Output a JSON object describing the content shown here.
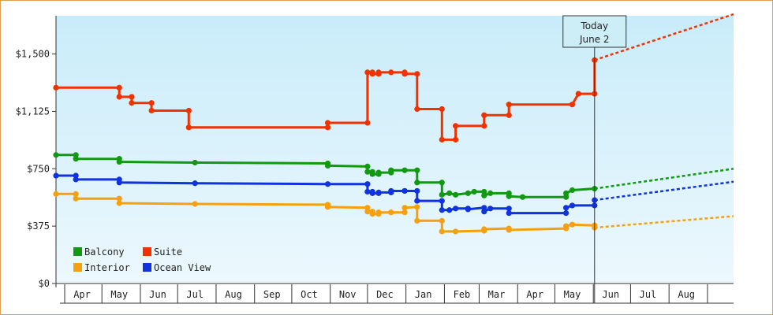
{
  "chart_data": {
    "type": "line",
    "title": "",
    "xlabel": "",
    "ylabel": "",
    "ylim": [
      0,
      1750
    ],
    "y_ticks": [
      {
        "value": 0,
        "label": "$0"
      },
      {
        "value": 375,
        "label": "$375"
      },
      {
        "value": 750,
        "label": "$750"
      },
      {
        "value": 1125,
        "label": "$1,125"
      },
      {
        "value": 1500,
        "label": "$1,500"
      }
    ],
    "x_range": [
      "2024-03-25",
      "2025-09-22"
    ],
    "month_labels": [
      {
        "label": "Apr",
        "date": "2024-04-15"
      },
      {
        "label": "May",
        "date": "2024-05-15"
      },
      {
        "label": "Jun",
        "date": "2024-06-15"
      },
      {
        "label": "Jul",
        "date": "2024-07-15"
      },
      {
        "label": "Aug",
        "date": "2024-08-15"
      },
      {
        "label": "Sep",
        "date": "2024-09-15"
      },
      {
        "label": "Oct",
        "date": "2024-10-15"
      },
      {
        "label": "Nov",
        "date": "2024-11-15"
      },
      {
        "label": "Dec",
        "date": "2024-12-15"
      },
      {
        "label": "Jan",
        "date": "2025-01-15"
      },
      {
        "label": "Feb",
        "date": "2025-02-15"
      },
      {
        "label": "Mar",
        "date": "2025-03-15"
      },
      {
        "label": "Apr",
        "date": "2025-04-15"
      },
      {
        "label": "May",
        "date": "2025-05-15"
      },
      {
        "label": "Jun",
        "date": "2025-06-15"
      },
      {
        "label": "Jul",
        "date": "2025-07-15"
      },
      {
        "label": "Aug",
        "date": "2025-08-15"
      }
    ],
    "today": {
      "date": "2025-06-02",
      "line1": "Today",
      "line2": "June 2"
    },
    "grid": false,
    "legend_position": "bottom-left",
    "series": [
      {
        "name": "Balcony",
        "color": "#119911",
        "points": [
          [
            "2024-03-25",
            840
          ],
          [
            "2024-04-10",
            840
          ],
          [
            "2024-04-10",
            815
          ],
          [
            "2024-05-15",
            815
          ],
          [
            "2024-05-15",
            795
          ],
          [
            "2024-07-15",
            790
          ],
          [
            "2024-10-30",
            785
          ],
          [
            "2024-10-30",
            770
          ],
          [
            "2024-12-01",
            765
          ],
          [
            "2024-12-01",
            730
          ],
          [
            "2024-12-05",
            730
          ],
          [
            "2024-12-05",
            715
          ],
          [
            "2024-12-10",
            715
          ],
          [
            "2024-12-10",
            725
          ],
          [
            "2024-12-20",
            725
          ],
          [
            "2024-12-20",
            740
          ],
          [
            "2024-12-31",
            740
          ],
          [
            "2025-01-10",
            740
          ],
          [
            "2025-01-10",
            660
          ],
          [
            "2025-01-30",
            660
          ],
          [
            "2025-01-30",
            580
          ],
          [
            "2025-02-05",
            590
          ],
          [
            "2025-02-10",
            580
          ],
          [
            "2025-02-20",
            590
          ],
          [
            "2025-02-25",
            600
          ],
          [
            "2025-03-05",
            600
          ],
          [
            "2025-03-05",
            575
          ],
          [
            "2025-03-10",
            590
          ],
          [
            "2025-03-25",
            590
          ],
          [
            "2025-03-25",
            570
          ],
          [
            "2025-04-05",
            565
          ],
          [
            "2025-05-10",
            565
          ],
          [
            "2025-05-10",
            590
          ],
          [
            "2025-05-15",
            610
          ],
          [
            "2025-06-02",
            620
          ]
        ],
        "projection": [
          [
            "2025-06-02",
            620
          ],
          [
            "2025-09-22",
            750
          ]
        ]
      },
      {
        "name": "Suite",
        "color": "#ee3300",
        "points": [
          [
            "2024-03-25",
            1280
          ],
          [
            "2024-05-15",
            1280
          ],
          [
            "2024-05-15",
            1220
          ],
          [
            "2024-05-25",
            1220
          ],
          [
            "2024-05-25",
            1180
          ],
          [
            "2024-06-10",
            1180
          ],
          [
            "2024-06-10",
            1130
          ],
          [
            "2024-07-10",
            1130
          ],
          [
            "2024-07-10",
            1020
          ],
          [
            "2024-10-30",
            1020
          ],
          [
            "2024-10-30",
            1050
          ],
          [
            "2024-12-01",
            1050
          ],
          [
            "2024-12-01",
            1380
          ],
          [
            "2024-12-05",
            1380
          ],
          [
            "2024-12-05",
            1370
          ],
          [
            "2024-12-10",
            1370
          ],
          [
            "2024-12-10",
            1380
          ],
          [
            "2024-12-20",
            1380
          ],
          [
            "2024-12-31",
            1380
          ],
          [
            "2024-12-31",
            1370
          ],
          [
            "2025-01-10",
            1370
          ],
          [
            "2025-01-10",
            1140
          ],
          [
            "2025-01-30",
            1140
          ],
          [
            "2025-01-30",
            940
          ],
          [
            "2025-02-10",
            940
          ],
          [
            "2025-02-10",
            1030
          ],
          [
            "2025-03-05",
            1030
          ],
          [
            "2025-03-05",
            1100
          ],
          [
            "2025-03-25",
            1100
          ],
          [
            "2025-03-25",
            1170
          ],
          [
            "2025-05-15",
            1170
          ],
          [
            "2025-05-20",
            1240
          ],
          [
            "2025-06-02",
            1240
          ],
          [
            "2025-06-02",
            1460
          ]
        ],
        "projection": [
          [
            "2025-06-02",
            1460
          ],
          [
            "2025-09-22",
            1760
          ]
        ]
      },
      {
        "name": "Interior",
        "color": "#f5a010",
        "points": [
          [
            "2024-03-25",
            585
          ],
          [
            "2024-04-10",
            585
          ],
          [
            "2024-04-10",
            555
          ],
          [
            "2024-05-15",
            555
          ],
          [
            "2024-05-15",
            525
          ],
          [
            "2024-07-15",
            520
          ],
          [
            "2024-10-30",
            515
          ],
          [
            "2024-10-30",
            500
          ],
          [
            "2024-12-01",
            495
          ],
          [
            "2024-12-01",
            470
          ],
          [
            "2024-12-05",
            470
          ],
          [
            "2024-12-05",
            455
          ],
          [
            "2024-12-10",
            455
          ],
          [
            "2024-12-10",
            465
          ],
          [
            "2024-12-20",
            465
          ],
          [
            "2024-12-31",
            465
          ],
          [
            "2024-12-31",
            495
          ],
          [
            "2025-01-10",
            500
          ],
          [
            "2025-01-10",
            410
          ],
          [
            "2025-01-30",
            410
          ],
          [
            "2025-01-30",
            340
          ],
          [
            "2025-02-10",
            340
          ],
          [
            "2025-03-05",
            345
          ],
          [
            "2025-03-05",
            355
          ],
          [
            "2025-03-25",
            360
          ],
          [
            "2025-03-25",
            350
          ],
          [
            "2025-05-10",
            360
          ],
          [
            "2025-05-10",
            375
          ],
          [
            "2025-05-15",
            385
          ],
          [
            "2025-06-02",
            380
          ],
          [
            "2025-06-02",
            365
          ]
        ],
        "projection": [
          [
            "2025-06-02",
            365
          ],
          [
            "2025-09-22",
            440
          ]
        ]
      },
      {
        "name": "Ocean View",
        "color": "#1133dd",
        "points": [
          [
            "2024-03-25",
            705
          ],
          [
            "2024-04-10",
            705
          ],
          [
            "2024-04-10",
            680
          ],
          [
            "2024-05-15",
            680
          ],
          [
            "2024-05-15",
            660
          ],
          [
            "2024-07-15",
            655
          ],
          [
            "2024-10-30",
            650
          ],
          [
            "2024-12-01",
            650
          ],
          [
            "2024-12-01",
            600
          ],
          [
            "2024-12-05",
            600
          ],
          [
            "2024-12-05",
            590
          ],
          [
            "2024-12-10",
            590
          ],
          [
            "2024-12-10",
            595
          ],
          [
            "2024-12-20",
            595
          ],
          [
            "2024-12-20",
            605
          ],
          [
            "2024-12-31",
            605
          ],
          [
            "2024-12-31",
            605
          ],
          [
            "2025-01-10",
            605
          ],
          [
            "2025-01-10",
            540
          ],
          [
            "2025-01-30",
            540
          ],
          [
            "2025-01-30",
            480
          ],
          [
            "2025-02-05",
            480
          ],
          [
            "2025-02-10",
            490
          ],
          [
            "2025-02-20",
            490
          ],
          [
            "2025-02-20",
            485
          ],
          [
            "2025-03-05",
            495
          ],
          [
            "2025-03-05",
            470
          ],
          [
            "2025-03-10",
            490
          ],
          [
            "2025-03-25",
            490
          ],
          [
            "2025-03-25",
            460
          ],
          [
            "2025-05-10",
            460
          ],
          [
            "2025-05-10",
            495
          ],
          [
            "2025-05-15",
            510
          ],
          [
            "2025-06-02",
            510
          ],
          [
            "2025-06-02",
            545
          ]
        ],
        "projection": [
          [
            "2025-06-02",
            545
          ],
          [
            "2025-09-22",
            665
          ]
        ]
      }
    ]
  }
}
